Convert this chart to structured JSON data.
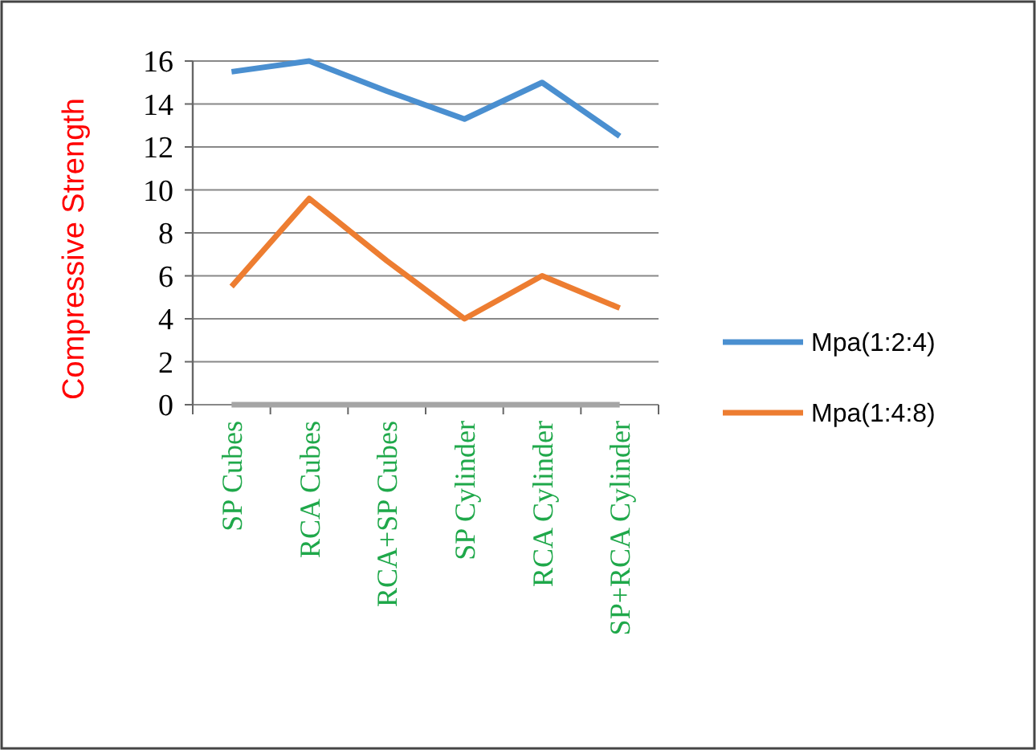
{
  "chart_data": {
    "type": "line",
    "ylabel": "Compressive Strength",
    "categories": [
      "SP Cubes",
      "RCA Cubes",
      "RCA+SP Cubes",
      "SP Cylinder",
      "RCA Cylinder",
      "SP+RCA Cylinder"
    ],
    "series": [
      {
        "name": "Mpa(1:2:4)",
        "color": "#4a8fd0",
        "values": [
          15.5,
          16,
          14.6,
          13.3,
          15,
          12.5
        ]
      },
      {
        "name": "Mpa(1:4:8)",
        "color": "#ed7d31",
        "values": [
          5.5,
          9.6,
          6.7,
          4,
          6,
          4.5
        ]
      },
      {
        "color": "#a5a5a5",
        "values": [
          0,
          0,
          0,
          0,
          0,
          0
        ]
      }
    ],
    "ylim": [
      0,
      16
    ],
    "yticks": [
      0,
      2,
      4,
      6,
      8,
      10,
      12,
      14,
      16
    ],
    "grid": "y",
    "legend": "right",
    "marker": "none",
    "line_style": "solid"
  }
}
